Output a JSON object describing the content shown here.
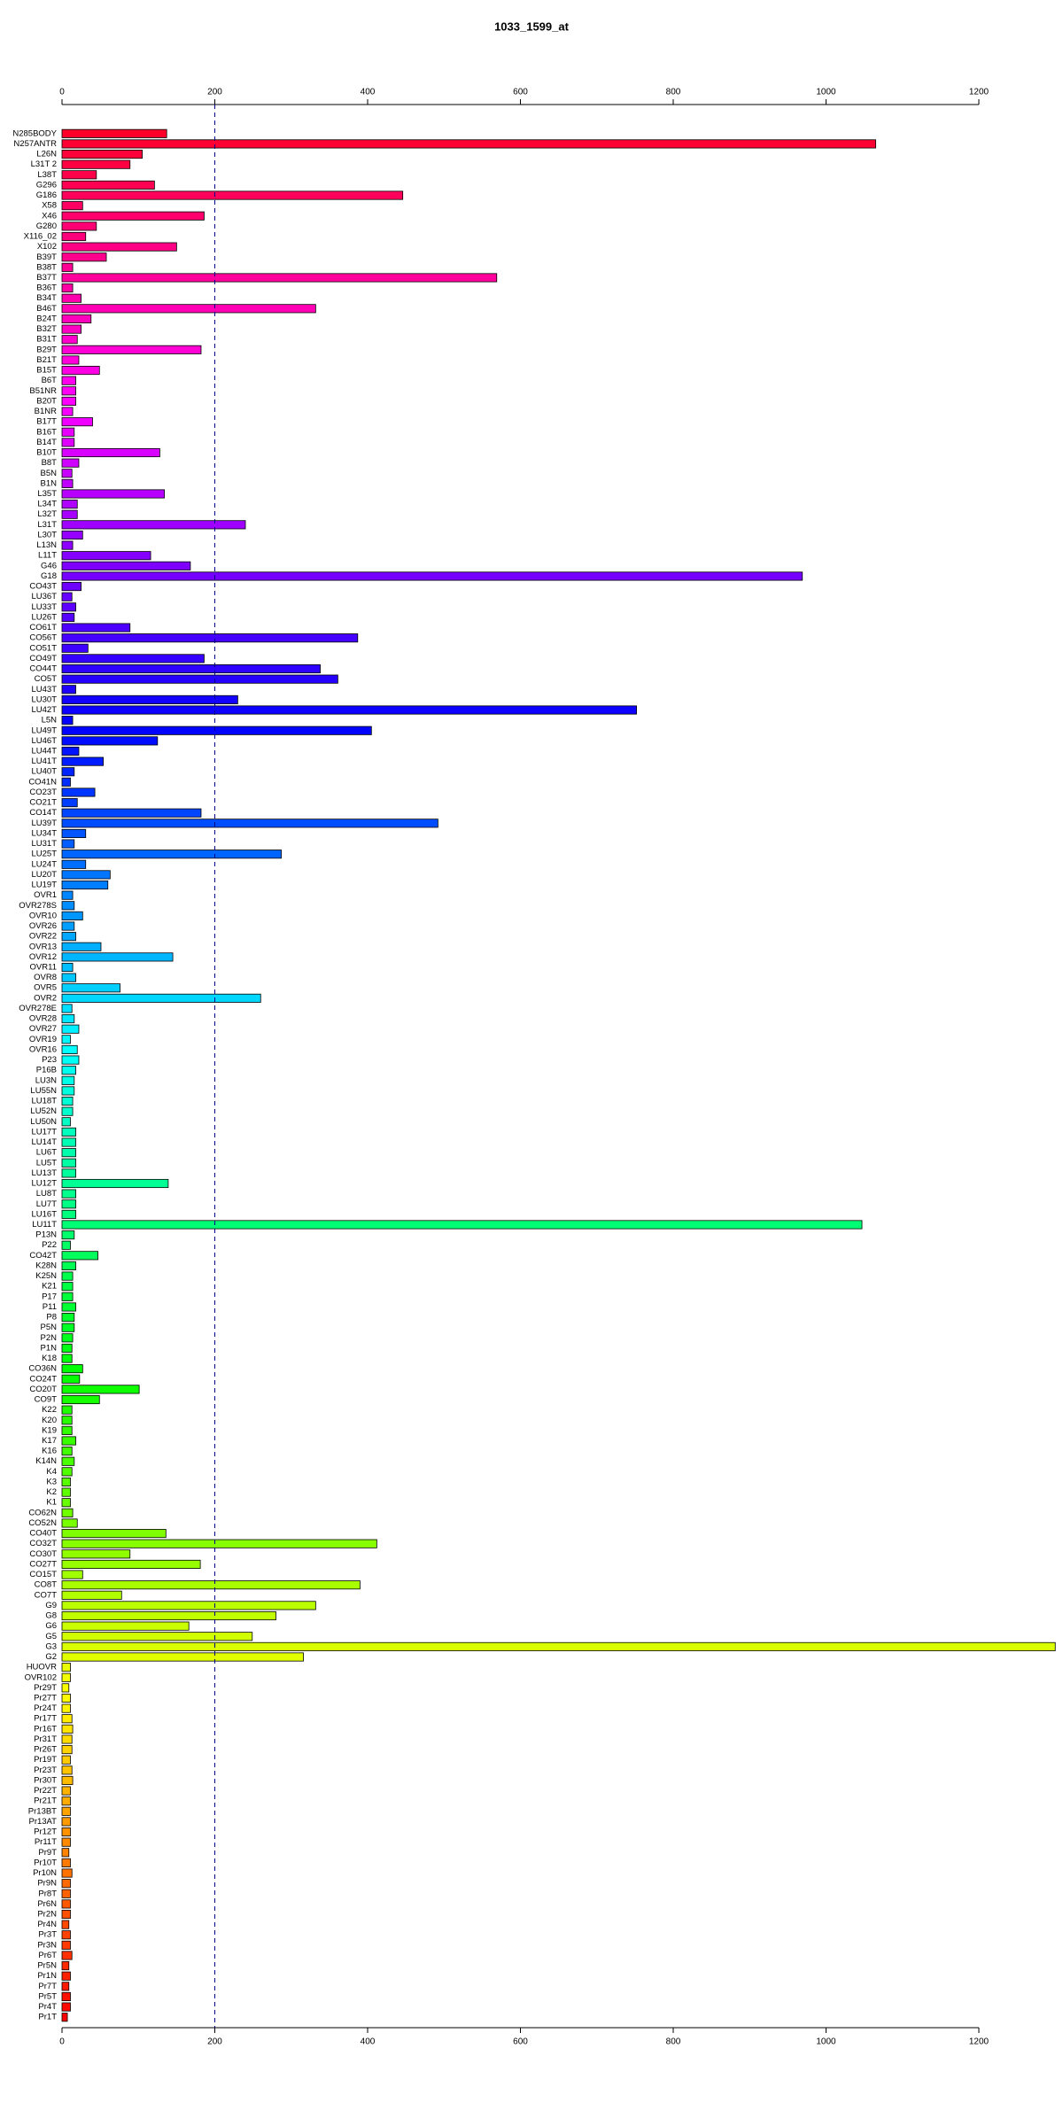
{
  "chart_data": {
    "type": "barh",
    "title": "1033_1599_at",
    "categories": [
      "N285BODY",
      "N257ANTR",
      "L26N",
      "L31T 2",
      "L38T",
      "G296",
      "G186",
      "X58",
      "X46",
      "G280",
      "X116_02",
      "X102",
      "B39T",
      "B38T",
      "B37T",
      "B36T",
      "B34T",
      "B46T",
      "B24T",
      "B32T",
      "B31T",
      "B29T",
      "B21T",
      "B15T",
      "B6T",
      "B51NR",
      "B20T",
      "B1NR",
      "B17T",
      "B16T",
      "B14T",
      "B10T",
      "B8T",
      "B5N",
      "B1N",
      "L35T",
      "L34T",
      "L32T",
      "L31T",
      "L30T",
      "L13N",
      "L11T",
      "G46",
      "G18",
      "CO43T",
      "LU36T",
      "LU33T",
      "LU26T",
      "CO61T",
      "CO56T",
      "CO51T",
      "CO49T",
      "CO44T",
      "CO5T",
      "LU43T",
      "LU30T",
      "LU42T",
      "L5N",
      "LU49T",
      "LU46T",
      "LU44T",
      "LU41T",
      "LU40T",
      "CO41N",
      "CO23T",
      "CO21T",
      "CO14T",
      "LU39T",
      "LU34T",
      "LU31T",
      "LU25T",
      "LU24T",
      "LU20T",
      "LU19T",
      "OVR1",
      "OVR278S",
      "OVR10",
      "OVR26",
      "OVR22",
      "OVR13",
      "OVR12",
      "OVR11",
      "OVR8",
      "OVR5",
      "OVR2",
      "OVR278E",
      "OVR28",
      "OVR27",
      "OVR19",
      "OVR16",
      "P23",
      "P16B",
      "LU3N",
      "LU55N",
      "LU18T",
      "LU52N",
      "LU50N",
      "LU17T",
      "LU14T",
      "LU6T",
      "LU5T",
      "LU13T",
      "LU12T",
      "LU8T",
      "LU7T",
      "LU16T",
      "LU11T",
      "P13N",
      "P22",
      "CO42T",
      "K28N",
      "K25N",
      "K21",
      "P17",
      "P11",
      "P8",
      "P5N",
      "P2N",
      "P1N",
      "K18",
      "CO36N",
      "CO24T",
      "CO20T",
      "CO9T",
      "K22",
      "K20",
      "K19",
      "K17",
      "K16",
      "K14N",
      "K4",
      "K3",
      "K2",
      "K1",
      "CO62N",
      "CO52N",
      "CO40T",
      "CO32T",
      "CO30T",
      "CO27T",
      "CO15T",
      "CO8T",
      "CO7T",
      "G9",
      "G8",
      "G6",
      "G5",
      "G3",
      "G2",
      "HUOVR",
      "OVR102",
      "Pr29T",
      "Pr27T",
      "Pr24T",
      "Pr17T",
      "Pr16T",
      "Pr31T",
      "Pr26T",
      "Pr19T",
      "Pr23T",
      "Pr30T",
      "Pr22T",
      "Pr21T",
      "Pr13BT",
      "Pr13AT",
      "Pr12T",
      "Pr11T",
      "Pr9T",
      "Pr10T",
      "Pr10N",
      "Pr9N",
      "Pr8T",
      "Pr6N",
      "Pr2N",
      "Pr4N",
      "Pr3T",
      "Pr3N",
      "Pr6T",
      "Pr5N",
      "Pr1N",
      "Pr7T",
      "Pr5T",
      "Pr4T",
      "Pr1T"
    ],
    "values": [
      137,
      1065,
      105,
      89,
      45,
      121,
      446,
      27,
      186,
      45,
      31,
      150,
      58,
      14,
      569,
      14,
      25,
      332,
      38,
      25,
      20,
      182,
      22,
      49,
      18,
      18,
      18,
      14,
      40,
      16,
      16,
      128,
      22,
      13,
      14,
      134,
      20,
      20,
      240,
      27,
      14,
      116,
      168,
      969,
      25,
      13,
      18,
      16,
      89,
      387,
      34,
      186,
      338,
      361,
      18,
      230,
      752,
      14,
      405,
      125,
      22,
      54,
      16,
      11,
      43,
      20,
      182,
      492,
      31,
      16,
      287,
      31,
      63,
      60,
      14,
      16,
      27,
      16,
      18,
      51,
      145,
      14,
      18,
      76,
      260,
      13,
      16,
      22,
      11,
      20,
      22,
      18,
      16,
      16,
      14,
      14,
      11,
      18,
      18,
      18,
      18,
      18,
      139,
      18,
      18,
      18,
      1047,
      16,
      11,
      47,
      18,
      14,
      14,
      14,
      18,
      16,
      16,
      14,
      13,
      13,
      27,
      23,
      101,
      49,
      13,
      13,
      13,
      18,
      13,
      16,
      13,
      11,
      11,
      11,
      14,
      20,
      136,
      412,
      89,
      181,
      27,
      390,
      78,
      332,
      280,
      166,
      249,
      1300,
      316,
      11,
      11,
      9,
      11,
      11,
      13,
      14,
      13,
      13,
      11,
      13,
      14,
      11,
      11,
      11,
      11,
      11,
      11,
      9,
      11,
      13,
      11,
      11,
      11,
      11,
      9,
      11,
      11,
      13,
      9,
      11,
      9,
      11,
      11,
      7
    ],
    "color_hues": [
      350,
      0
    ],
    "xlim": [
      0,
      1200
    ],
    "xticks": [
      0,
      200,
      400,
      600,
      800,
      1000,
      1200
    ],
    "reference_line": 200,
    "reference_line_color": "#00008b"
  }
}
